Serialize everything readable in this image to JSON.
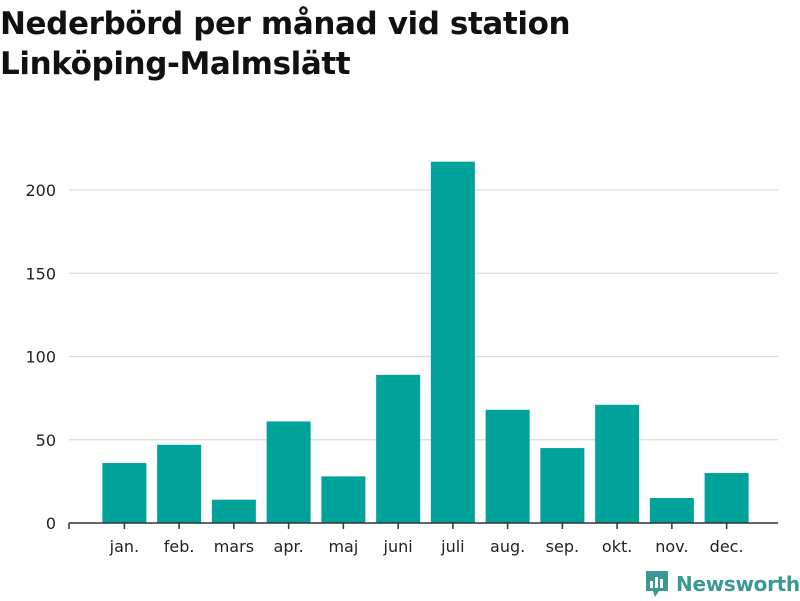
{
  "chart_data": {
    "type": "bar",
    "title": "Nederbörd per månad vid station Linköping-Malmslätt",
    "xlabel": "",
    "ylabel": "",
    "categories": [
      "jan.",
      "feb.",
      "mars",
      "apr.",
      "maj",
      "juni",
      "juli",
      "aug.",
      "sep.",
      "okt.",
      "nov.",
      "dec."
    ],
    "values": [
      36,
      47,
      14,
      61,
      28,
      89,
      217,
      68,
      45,
      71,
      15,
      30
    ],
    "ylim": [
      0,
      230
    ],
    "yticks": [
      0,
      50,
      100,
      150,
      200
    ],
    "grid": true,
    "bar_color": "#00a39a"
  },
  "brand": {
    "name": "Newsworthy",
    "color": "#3a9a93"
  }
}
